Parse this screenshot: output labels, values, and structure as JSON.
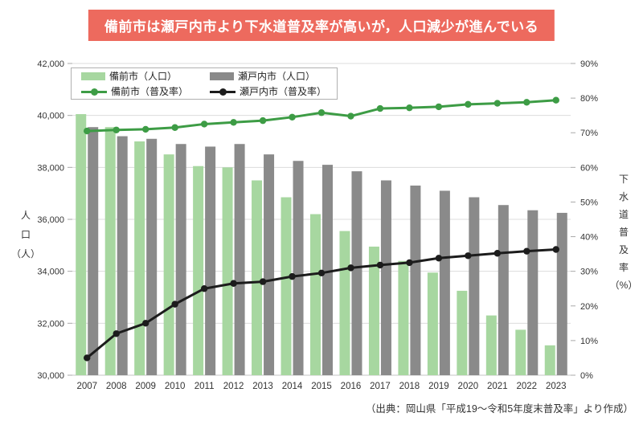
{
  "banner": {
    "title": "備前市は瀬戸内市より下水道普及率が高いが，人口減少が進んでいる",
    "bg_color": "#ed6a5e",
    "text_color": "#ffffff"
  },
  "source_note": "（出典：岡山県「平成19～令和5年度末普及率」より作成）",
  "legend": {
    "items": [
      {
        "label": "備前市（人口）",
        "type": "bar",
        "color": "#a7d7a0"
      },
      {
        "label": "瀬戸内市（人口）",
        "type": "bar",
        "color": "#8a8a8a"
      },
      {
        "label": "備前市（普及率）",
        "type": "line",
        "color": "#3d9c45"
      },
      {
        "label": "瀬戸内市（普及率）",
        "type": "line",
        "color": "#1c1c1c"
      }
    ]
  },
  "chart_data": {
    "type": "bar",
    "subtype": "grouped-bar-with-lines-combo",
    "categories": [
      "2007",
      "2008",
      "2009",
      "2010",
      "2011",
      "2012",
      "2013",
      "2014",
      "2015",
      "2016",
      "2017",
      "2018",
      "2019",
      "2020",
      "2021",
      "2022",
      "2023"
    ],
    "series": [
      {
        "name": "備前市（人口）",
        "type": "bar",
        "axis": "left",
        "color": "#a7d7a0",
        "values": [
          40050,
          39550,
          39000,
          38500,
          38050,
          38000,
          37500,
          36850,
          36200,
          35550,
          34950,
          34400,
          33950,
          33250,
          32300,
          31750,
          31150
        ]
      },
      {
        "name": "瀬戸内市（人口）",
        "type": "bar",
        "axis": "left",
        "color": "#8a8a8a",
        "values": [
          39550,
          39200,
          39100,
          38900,
          38800,
          38900,
          38500,
          38250,
          38100,
          37850,
          37500,
          37300,
          37100,
          36850,
          36550,
          36350,
          36250
        ]
      },
      {
        "name": "備前市（普及率）",
        "type": "line",
        "axis": "right",
        "color": "#3d9c45",
        "values": [
          70.5,
          70.8,
          71.0,
          71.5,
          72.5,
          73.0,
          73.5,
          74.5,
          75.8,
          74.8,
          77.0,
          77.2,
          77.5,
          78.2,
          78.5,
          78.8,
          79.4
        ]
      },
      {
        "name": "瀬戸内市（普及率）",
        "type": "line",
        "axis": "right",
        "color": "#1c1c1c",
        "values": [
          5.0,
          12.0,
          15.0,
          20.5,
          25.0,
          26.5,
          27.0,
          28.5,
          29.5,
          31.0,
          31.8,
          32.5,
          33.8,
          34.5,
          35.2,
          35.8,
          36.3
        ]
      }
    ],
    "left_axis": {
      "label_lines": [
        "人",
        "口",
        "（人）"
      ],
      "min": 30000,
      "max": 42000,
      "step": 2000,
      "tick_labels": [
        "30,000",
        "32,000",
        "34,000",
        "36,000",
        "38,000",
        "40,000",
        "42,000"
      ]
    },
    "right_axis": {
      "label_lines": [
        "下",
        "水",
        "道",
        "普",
        "及",
        "率",
        "（%）"
      ],
      "min": 0,
      "max": 90,
      "step": 10,
      "tick_labels": [
        "0%",
        "10%",
        "20%",
        "30%",
        "40%",
        "50%",
        "60%",
        "70%",
        "80%",
        "90%"
      ]
    },
    "grid": true,
    "legend_position": "top-left",
    "colors": {
      "gridline": "#dcdcdc",
      "baseline": "#c4c4c4",
      "tick": "#a9a9a9",
      "axis_text": "#333333"
    }
  }
}
